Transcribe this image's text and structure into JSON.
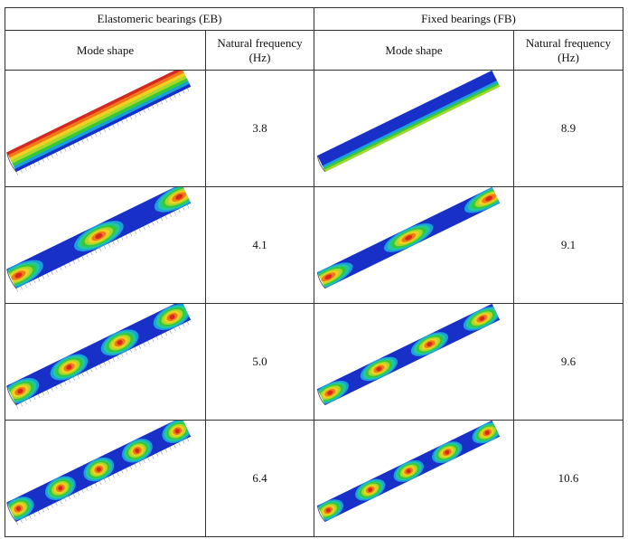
{
  "table": {
    "groups": [
      "Elastomeric bearings (EB)",
      "Fixed bearings (FB)"
    ],
    "headers": [
      "Mode shape",
      "Natural frequency (Hz)",
      "Mode shape",
      "Natural frequency (Hz)"
    ],
    "rows": [
      [
        "3.8",
        "8.9"
      ],
      [
        "4.1",
        "9.1"
      ],
      [
        "5.0",
        "9.6"
      ],
      [
        "6.4",
        "10.6"
      ]
    ]
  }
}
